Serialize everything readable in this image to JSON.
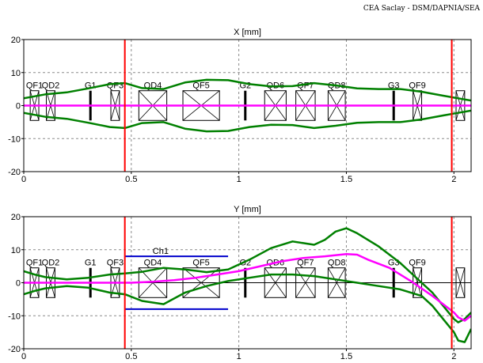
{
  "credit": "CEA Saclay - DSM/DAPNIA/SEA",
  "chart_data": [
    {
      "type": "line",
      "title": "X [mm]",
      "xlim": [
        0,
        2.08
      ],
      "ylim": [
        -20,
        20
      ],
      "x_ticks": [
        "0",
        "0.5",
        "1",
        "1.5",
        "2"
      ],
      "y_ticks": [
        "20",
        "10",
        "0",
        "-10",
        "-20"
      ],
      "grid": true,
      "markers_x": [
        0.47,
        1.99
      ],
      "elements": [
        {
          "label": "QF1",
          "type": "quad",
          "s0": 0.03,
          "s1": 0.07
        },
        {
          "label": "QD2",
          "type": "quad",
          "s0": 0.105,
          "s1": 0.145
        },
        {
          "label": "G1",
          "type": "gap",
          "s0": 0.31,
          "s1": 0.31
        },
        {
          "label": "QF3",
          "type": "quad",
          "s0": 0.405,
          "s1": 0.445
        },
        {
          "label": "QD4",
          "type": "quad",
          "s0": 0.535,
          "s1": 0.665
        },
        {
          "label": "QF5",
          "type": "quad",
          "s0": 0.74,
          "s1": 0.91
        },
        {
          "label": "G2",
          "type": "gap",
          "s0": 1.03,
          "s1": 1.03
        },
        {
          "label": "QD6",
          "type": "quad",
          "s0": 1.12,
          "s1": 1.22
        },
        {
          "label": "QF7",
          "type": "quad",
          "s0": 1.265,
          "s1": 1.355
        },
        {
          "label": "QD8",
          "type": "quad",
          "s0": 1.415,
          "s1": 1.495
        },
        {
          "label": "G3",
          "type": "gap",
          "s0": 1.72,
          "s1": 1.72
        },
        {
          "label": "QF9",
          "type": "quad",
          "s0": 1.81,
          "s1": 1.85
        },
        {
          "label": "",
          "type": "quad",
          "s0": 2.01,
          "s1": 2.05
        }
      ],
      "series": [
        {
          "role": "envelope-upper",
          "color": "#008000",
          "x": [
            0,
            0.05,
            0.1,
            0.2,
            0.3,
            0.4,
            0.47,
            0.55,
            0.65,
            0.75,
            0.85,
            0.95,
            1.05,
            1.15,
            1.25,
            1.35,
            1.45,
            1.55,
            1.65,
            1.75,
            1.85,
            1.95,
            2.02,
            2.08
          ],
          "y": [
            2.2,
            2.8,
            3.4,
            4.0,
            5.2,
            6.5,
            6.8,
            5.3,
            5.0,
            7.0,
            7.8,
            7.7,
            6.5,
            5.8,
            5.9,
            6.8,
            6.1,
            5.2,
            5.0,
            5.0,
            4.2,
            3.0,
            2.2,
            1.5
          ]
        },
        {
          "role": "envelope-lower",
          "color": "#008000",
          "x": [
            0,
            0.05,
            0.1,
            0.2,
            0.3,
            0.4,
            0.47,
            0.55,
            0.65,
            0.75,
            0.85,
            0.95,
            1.05,
            1.15,
            1.25,
            1.35,
            1.45,
            1.55,
            1.65,
            1.75,
            1.85,
            1.95,
            2.02,
            2.08
          ],
          "y": [
            -2.2,
            -2.8,
            -3.4,
            -4.0,
            -5.2,
            -6.5,
            -6.8,
            -5.3,
            -5.0,
            -7.0,
            -7.8,
            -7.7,
            -6.5,
            -5.8,
            -5.9,
            -6.8,
            -6.1,
            -5.2,
            -5.0,
            -5.0,
            -4.2,
            -3.0,
            -2.2,
            -1.5
          ]
        },
        {
          "role": "centroid",
          "color": "#ff00ff",
          "x": [
            0,
            2.08
          ],
          "y": [
            0,
            0
          ]
        }
      ],
      "apertures": []
    },
    {
      "type": "line",
      "title": "Y [mm]",
      "xlim": [
        0,
        2.08
      ],
      "ylim": [
        -20,
        20
      ],
      "x_ticks": [
        "0",
        "0.5",
        "1",
        "1.5",
        "2"
      ],
      "y_ticks": [
        "20",
        "10",
        "0",
        "-10",
        "-20"
      ],
      "grid": true,
      "markers_x": [
        0.47,
        1.99
      ],
      "elements": [
        {
          "label": "QF1",
          "type": "quad",
          "s0": 0.03,
          "s1": 0.07
        },
        {
          "label": "QD2",
          "type": "quad",
          "s0": 0.105,
          "s1": 0.145
        },
        {
          "label": "G1",
          "type": "gap",
          "s0": 0.31,
          "s1": 0.31
        },
        {
          "label": "QF3",
          "type": "quad",
          "s0": 0.405,
          "s1": 0.445
        },
        {
          "label": "QD4",
          "type": "quad",
          "s0": 0.535,
          "s1": 0.665
        },
        {
          "label": "QF5",
          "type": "quad",
          "s0": 0.74,
          "s1": 0.91
        },
        {
          "label": "G2",
          "type": "gap",
          "s0": 1.03,
          "s1": 1.03
        },
        {
          "label": "QD6",
          "type": "quad",
          "s0": 1.12,
          "s1": 1.22
        },
        {
          "label": "QF7",
          "type": "quad",
          "s0": 1.265,
          "s1": 1.355
        },
        {
          "label": "QD8",
          "type": "quad",
          "s0": 1.415,
          "s1": 1.495
        },
        {
          "label": "G3",
          "type": "gap",
          "s0": 1.72,
          "s1": 1.72
        },
        {
          "label": "QF9",
          "type": "quad",
          "s0": 1.81,
          "s1": 1.85
        },
        {
          "label": "",
          "type": "quad",
          "s0": 2.01,
          "s1": 2.05
        }
      ],
      "series": [
        {
          "role": "envelope-upper",
          "color": "#008000",
          "x": [
            0,
            0.05,
            0.1,
            0.2,
            0.3,
            0.4,
            0.47,
            0.55,
            0.65,
            0.75,
            0.85,
            0.95,
            1.05,
            1.15,
            1.25,
            1.3,
            1.35,
            1.4,
            1.45,
            1.5,
            1.55,
            1.65,
            1.75,
            1.85,
            1.9,
            1.95,
            2.0,
            2.02,
            2.05,
            2.08
          ],
          "y": [
            3.5,
            2.5,
            1.7,
            1.0,
            1.5,
            2.5,
            2.8,
            3.3,
            4.5,
            4.0,
            3.2,
            4.0,
            7.0,
            10.5,
            12.5,
            12.0,
            11.5,
            13.0,
            15.5,
            16.5,
            15.0,
            11.0,
            6.0,
            0.0,
            -3.0,
            -7.0,
            -11.0,
            -12.0,
            -11.0,
            -9.0
          ]
        },
        {
          "role": "envelope-lower",
          "color": "#008000",
          "x": [
            0,
            0.05,
            0.1,
            0.2,
            0.3,
            0.4,
            0.47,
            0.55,
            0.65,
            0.75,
            0.85,
            0.95,
            1.05,
            1.15,
            1.25,
            1.35,
            1.45,
            1.55,
            1.65,
            1.75,
            1.85,
            1.9,
            1.95,
            2.0,
            2.02,
            2.05,
            2.08
          ],
          "y": [
            -3.5,
            -2.5,
            -1.7,
            -1.0,
            -1.5,
            -3.0,
            -3.5,
            -5.5,
            -6.5,
            -3.0,
            -1.0,
            0.5,
            1.5,
            2.5,
            2.5,
            2.0,
            1.0,
            0.0,
            -1.0,
            -2.0,
            -4.0,
            -7.0,
            -11.0,
            -15.0,
            -17.5,
            -18.0,
            -14.0
          ]
        },
        {
          "role": "centroid",
          "color": "#ff00ff",
          "x": [
            0,
            0.1,
            0.2,
            0.3,
            0.4,
            0.5,
            0.6,
            0.7,
            0.8,
            0.9,
            1.0,
            1.1,
            1.2,
            1.3,
            1.4,
            1.5,
            1.55,
            1.6,
            1.7,
            1.8,
            1.9,
            2.0,
            2.02,
            2.05,
            2.08
          ],
          "y": [
            0,
            0,
            0,
            0,
            0,
            0,
            0.3,
            0.8,
            1.5,
            2.5,
            3.5,
            5.0,
            6.5,
            7.5,
            8.0,
            8.7,
            8.5,
            7.0,
            4.5,
            0.5,
            -4.0,
            -9.0,
            -10.5,
            -11.5,
            -10.0
          ]
        }
      ],
      "apertures": [
        {
          "label": "Ch1",
          "s0": 0.47,
          "s1": 0.95,
          "y_top": 8,
          "y_bottom": -8,
          "color": "#0000cc"
        }
      ]
    }
  ]
}
